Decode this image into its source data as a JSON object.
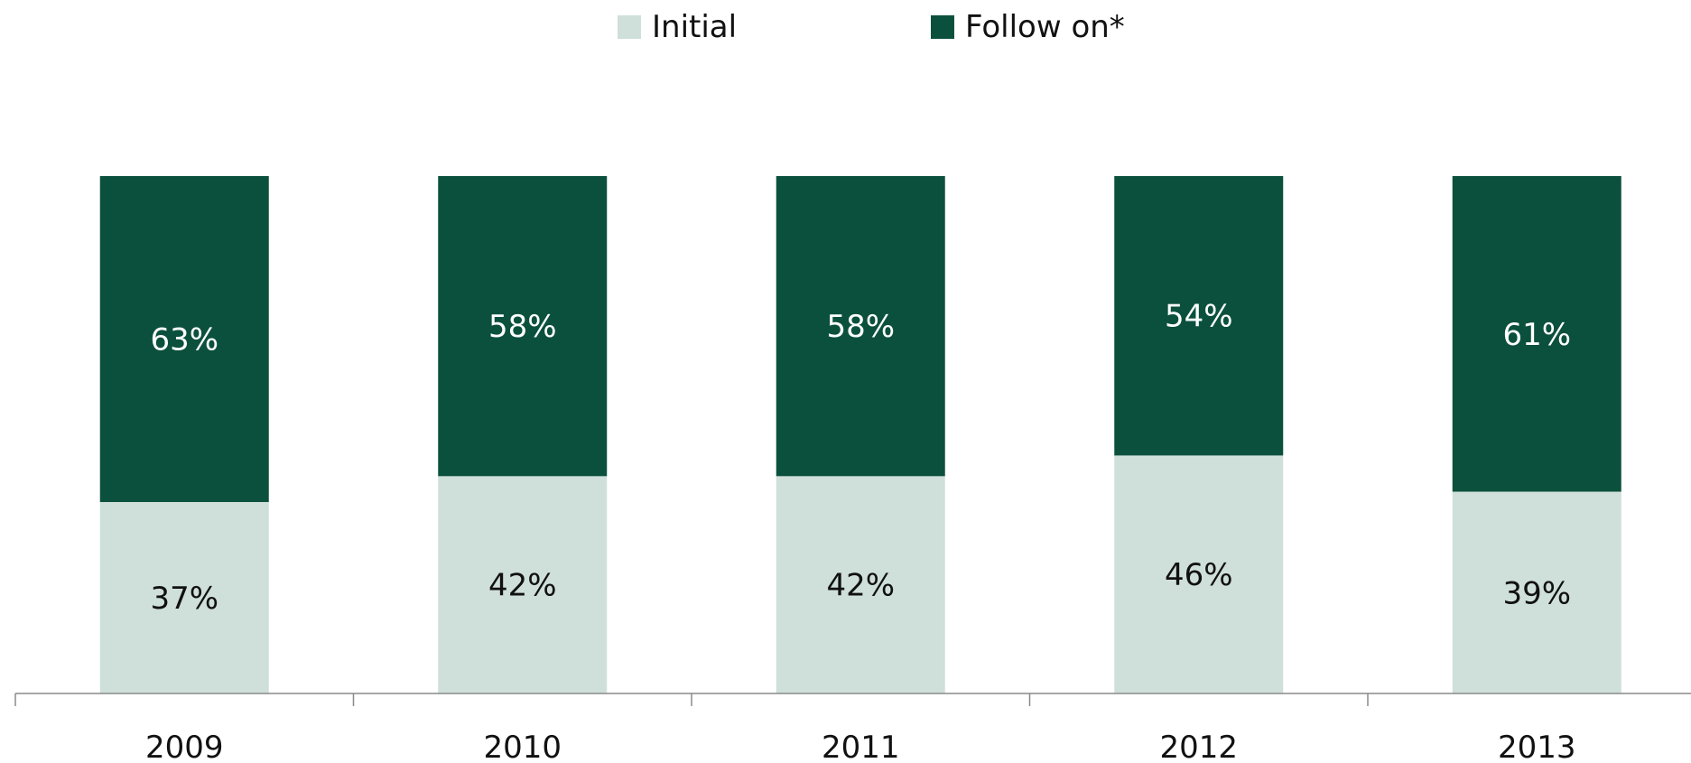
{
  "chart_data": {
    "type": "bar",
    "stacked": true,
    "normalized_percent": true,
    "categories": [
      "2009",
      "2010",
      "2011",
      "2012",
      "2013"
    ],
    "series": [
      {
        "name": "Initial",
        "color": "#cfdfd9",
        "label_color": "#111111",
        "values": [
          37,
          42,
          42,
          46,
          39
        ],
        "labels": [
          "37%",
          "42%",
          "42%",
          "46%",
          "39%"
        ]
      },
      {
        "name": "Follow on*",
        "color": "#0b503d",
        "label_color": "#ffffff",
        "values": [
          63,
          58,
          58,
          54,
          61
        ],
        "labels": [
          "63%",
          "58%",
          "58%",
          "54%",
          "61%"
        ]
      }
    ],
    "ylim": [
      0,
      100
    ],
    "legend_position": "top-center",
    "grid": false
  }
}
